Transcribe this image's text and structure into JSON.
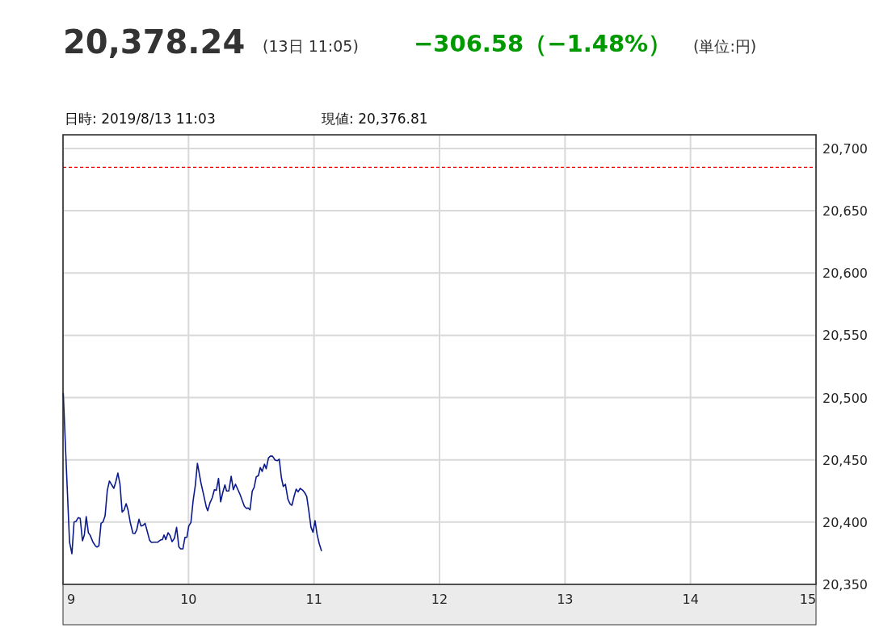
{
  "chart_data": {
    "type": "line",
    "title": "20,378.24",
    "annotations": [
      "(13日 11:05)",
      "−306.58（−1.48%）",
      "(単位:円)",
      "日時: 2019/8/13  11:03",
      "現値: 20,376.81"
    ],
    "x": [
      9.002,
      9.024,
      9.052,
      9.071,
      9.088,
      9.103,
      9.121,
      9.137,
      9.155,
      9.17,
      9.185,
      9.202,
      9.217,
      9.239,
      9.26,
      9.271,
      9.286,
      9.303,
      9.318,
      9.335,
      9.353,
      9.37,
      9.389,
      9.405,
      9.421,
      9.437,
      9.454,
      9.471,
      9.486,
      9.503,
      9.518,
      9.535,
      9.557,
      9.572,
      9.587,
      9.605,
      9.621,
      9.637,
      9.654,
      9.671,
      9.69,
      9.705,
      9.727,
      9.755,
      9.776,
      9.792,
      9.805,
      9.819,
      9.837,
      9.852,
      9.869,
      9.888,
      9.905,
      9.923,
      9.937,
      9.955,
      9.972,
      9.987,
      10.002,
      10.019,
      10.037,
      10.054,
      10.071,
      10.099,
      10.121,
      10.142,
      10.153,
      10.17,
      10.189,
      10.206,
      10.222,
      10.239,
      10.256,
      10.273,
      10.29,
      10.303,
      10.321,
      10.34,
      10.357,
      10.374,
      10.394,
      10.411,
      10.428,
      10.445,
      10.463,
      10.475,
      10.49,
      10.508,
      10.523,
      10.54,
      10.557,
      10.572,
      10.587,
      10.605,
      10.619,
      10.637,
      10.652,
      10.669,
      10.69,
      10.708,
      10.723,
      10.74,
      10.755,
      10.772,
      10.792,
      10.808,
      10.824,
      10.841,
      10.858,
      10.873,
      10.89,
      10.91,
      10.927,
      10.942,
      10.959,
      10.976,
      10.992,
      11.008,
      11.024,
      11.041,
      11.06
    ],
    "series": [
      {
        "color": "#0a1a8c",
        "values": [
          20503.8,
          20449.8,
          20383.9,
          20374.6,
          20400.1,
          20400.5,
          20403.6,
          20403.0,
          20385.0,
          20389.7,
          20404.4,
          20391.5,
          20389.3,
          20383.9,
          20380.7,
          20380.0,
          20381.0,
          20399.0,
          20400.0,
          20404.9,
          20425.6,
          20433.0,
          20429.7,
          20427.1,
          20432.5,
          20439.4,
          20430.4,
          20408.1,
          20409.6,
          20414.8,
          20409.8,
          20400.1,
          20391.0,
          20390.8,
          20393.6,
          20402.3,
          20396.9,
          20397.3,
          20399.0,
          20392.6,
          20385.4,
          20383.7,
          20383.9,
          20383.9,
          20385.6,
          20386.0,
          20389.7,
          20386.0,
          20391.5,
          20389.3,
          20384.3,
          20387.1,
          20395.8,
          20380.2,
          20378.5,
          20378.5,
          20387.8,
          20387.8,
          20396.9,
          20399.7,
          20417.4,
          20429.3,
          20447.2,
          20431.5,
          20421.7,
          20412.0,
          20409.2,
          20415.2,
          20419.5,
          20426.0,
          20425.6,
          20435.1,
          20416.3,
          20423.9,
          20429.9,
          20425.0,
          20425.0,
          20436.8,
          20426.0,
          20430.4,
          20426.0,
          20422.1,
          20417.4,
          20412.7,
          20410.9,
          20411.4,
          20409.8,
          20425.0,
          20427.8,
          20436.4,
          20437.3,
          20443.8,
          20440.7,
          20446.6,
          20442.9,
          20451.5,
          20453.0,
          20453.0,
          20449.8,
          20449.3,
          20450.5,
          20435.7,
          20428.6,
          20430.4,
          20418.5,
          20414.8,
          20413.5,
          20420.6,
          20426.5,
          20424.3,
          20427.1,
          20425.6,
          20423.4,
          20420.6,
          20408.8,
          20395.8,
          20391.9,
          20401.2,
          20390.4,
          20382.9,
          20376.8
        ]
      }
    ],
    "xlim": [
      9,
      15
    ],
    "xticks": [
      9,
      10,
      11,
      12,
      13,
      14,
      15
    ],
    "ylim": [
      20350,
      20711
    ],
    "yticks": [
      {
        "value": 20350,
        "label": "20,350"
      },
      {
        "value": 20400,
        "label": "20,400"
      },
      {
        "value": 20450,
        "label": "20,450"
      },
      {
        "value": 20500,
        "label": "20,500"
      },
      {
        "value": 20550,
        "label": "20,550"
      },
      {
        "value": 20600,
        "label": "20,600"
      },
      {
        "value": 20650,
        "label": "20,650"
      },
      {
        "value": 20700,
        "label": "20,700"
      }
    ],
    "ref_lines": [
      {
        "axis": "y",
        "value": 20684.82,
        "color": "#ff0000",
        "line_style": "dashed"
      }
    ],
    "grid": true,
    "marker": "none",
    "line_style": "solid"
  }
}
